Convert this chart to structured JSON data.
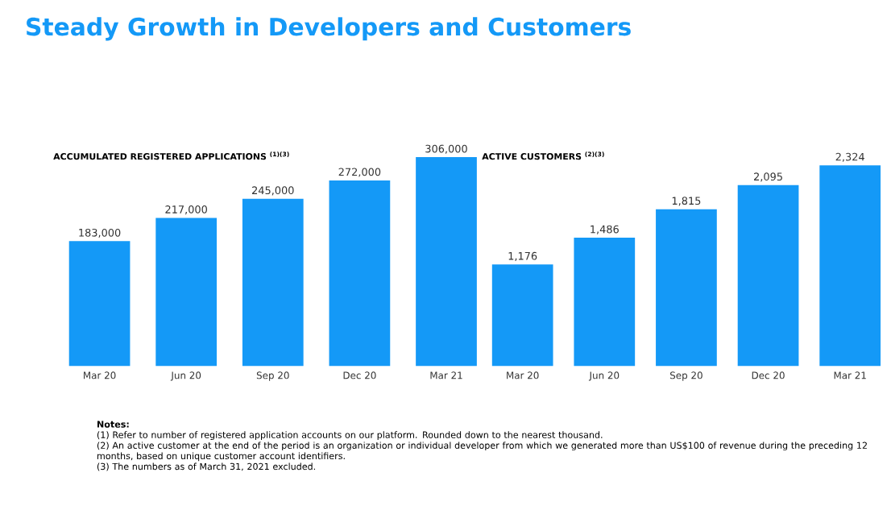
{
  "chart_data": [
    {
      "type": "bar",
      "title": "Steady Growth in Developers and Customers",
      "subtitle": "ACCUMULATED REGISTERED APPLICATIONS $^{(1)(3)}$",
      "categories": [
        "Mar 20",
        "Jun 20",
        "Sep 20",
        "Dec 20",
        "Mar 21"
      ],
      "values": [
        183000,
        217000,
        245000,
        272000,
        306000
      ],
      "value_labels": [
        "183,000",
        "217,000",
        "245,000",
        "272,000",
        "306,000"
      ],
      "color": "#1499f7",
      "annotations": [
        "**Notes:**",
        "(1) Refer to number of registered application accounts on our platform. Rounded down to the nearest thousand.",
        "(2) An active customer at the end of the period is an organization or individual developer from which we generated more than US$100 of revenue during the preceding 12 months, based on unique customer account identifiers.",
        "(3) The numbers as of March 31, 2021 excluded."
      ]
    },
    {
      "type": "bar",
      "title": "ACTIVE CUSTOMERS $^{(2)(3)}$",
      "categories": [
        "Mar 20",
        "Jun 20",
        "Sep 20",
        "Dec 20",
        "Mar 21"
      ],
      "values": [
        1176,
        1486,
        1815,
        2095,
        2324
      ],
      "value_labels": [
        "1,176",
        "1,486",
        "1,815",
        "2,095",
        "2,324"
      ],
      "color": "#1499f7"
    }
  ]
}
